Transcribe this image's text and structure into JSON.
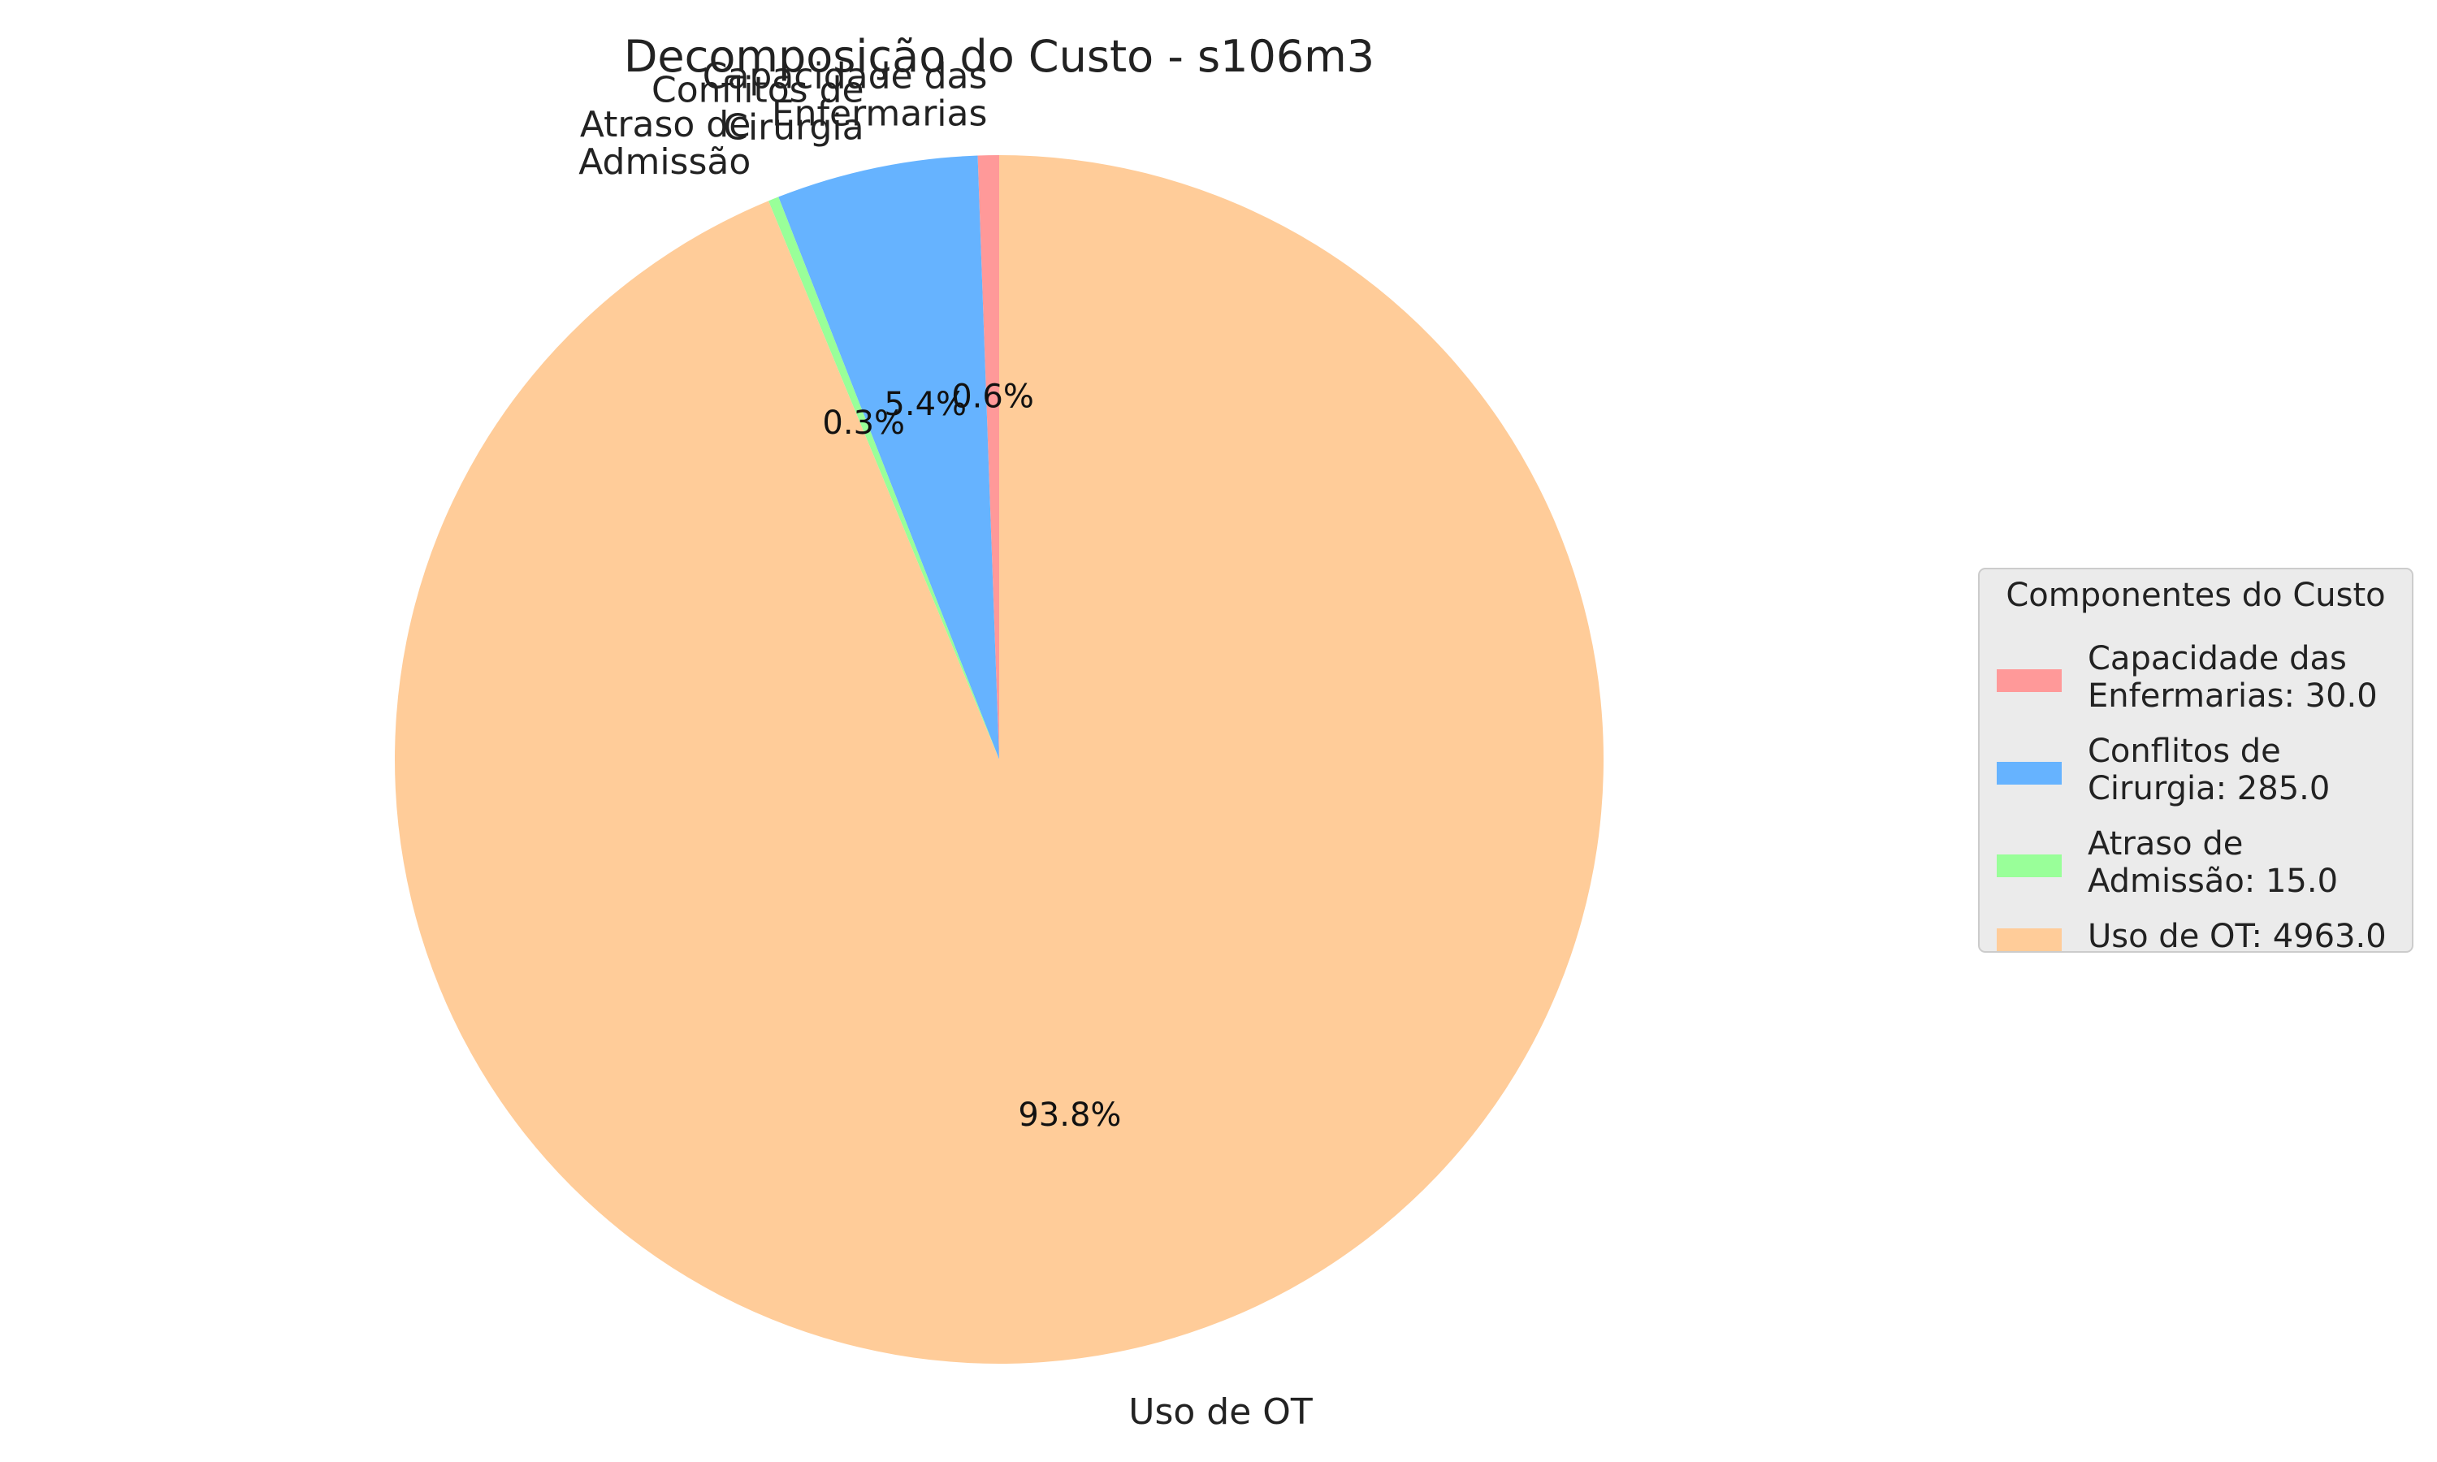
{
  "chart_data": {
    "type": "pie",
    "title": "Decomposição do Custo - s106m3",
    "labels": [
      "Capacidade das\nEnfermarias",
      "Conflitos de\nCirurgia",
      "Atraso de\nAdmissão",
      "Uso de OT"
    ],
    "values": [
      30.0,
      285.0,
      15.0,
      4963.0
    ],
    "percent_labels": [
      "0.6%",
      "5.4%",
      "0.3%",
      "93.8%"
    ],
    "colors": [
      "#ff9999",
      "#66b3ff",
      "#99ff99",
      "#ffcc99"
    ],
    "start_angle_deg": 90,
    "direction": "counterclockwise",
    "legend": {
      "title": "Componentes do Custo",
      "placement": "right",
      "entries": [
        "Capacidade das\nEnfermarias: 30.0",
        "Conflitos de\nCirurgia: 285.0",
        "Atraso de\nAdmissão: 15.0",
        "Uso de OT: 4963.0"
      ]
    }
  }
}
